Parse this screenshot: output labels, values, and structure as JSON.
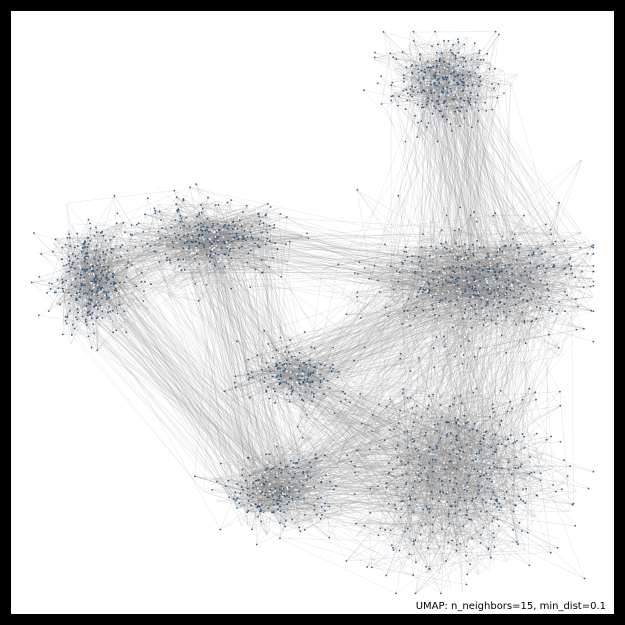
{
  "chart_data": {
    "type": "scatter",
    "subtype": "umap-connectivity",
    "annotation": "UMAP: n_neighbors=15, min_dist=0.1",
    "point_color": "#1f4e79",
    "point_highlight_color": "#ffffff",
    "edge_color": "#808080",
    "background": "#ffffff",
    "frame_color": "#000000",
    "axes_visible": false,
    "grid": false,
    "legend": "none",
    "xlim": [
      0,
      1
    ],
    "ylim": [
      0,
      1
    ],
    "clusters": [
      {
        "id": "A",
        "center": [
          0.11,
          0.56
        ],
        "spread": [
          0.07,
          0.09
        ],
        "n": 420
      },
      {
        "id": "B",
        "center": [
          0.32,
          0.63
        ],
        "spread": [
          0.12,
          0.06
        ],
        "n": 360
      },
      {
        "id": "C",
        "center": [
          0.47,
          0.39
        ],
        "spread": [
          0.09,
          0.05
        ],
        "n": 220
      },
      {
        "id": "D",
        "center": [
          0.44,
          0.18
        ],
        "spread": [
          0.09,
          0.06
        ],
        "n": 260
      },
      {
        "id": "E",
        "center": [
          0.76,
          0.21
        ],
        "spread": [
          0.17,
          0.16
        ],
        "n": 620
      },
      {
        "id": "F",
        "center": [
          0.8,
          0.56
        ],
        "spread": [
          0.17,
          0.09
        ],
        "n": 580
      },
      {
        "id": "G",
        "center": [
          0.73,
          0.91
        ],
        "spread": [
          0.09,
          0.07
        ],
        "n": 360
      }
    ],
    "inter_cluster_edges": [
      [
        "A",
        "B",
        140
      ],
      [
        "B",
        "C",
        90
      ],
      [
        "A",
        "D",
        160
      ],
      [
        "B",
        "D",
        120
      ],
      [
        "C",
        "E",
        140
      ],
      [
        "D",
        "E",
        200
      ],
      [
        "C",
        "F",
        160
      ],
      [
        "E",
        "F",
        220
      ],
      [
        "F",
        "G",
        260
      ],
      [
        "B",
        "F",
        90
      ],
      [
        "D",
        "F",
        110
      ]
    ]
  }
}
